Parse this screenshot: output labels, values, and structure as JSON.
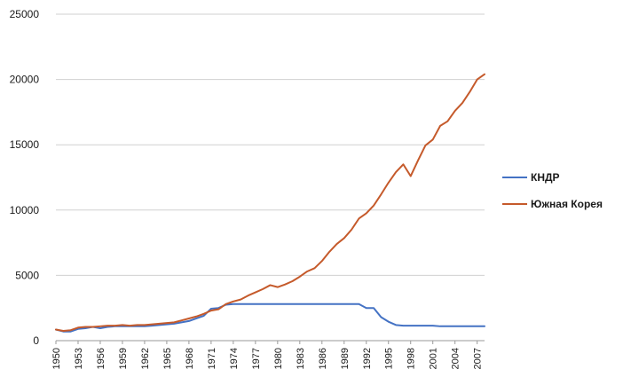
{
  "chart_data": {
    "type": "line",
    "title": "",
    "xlabel": "",
    "ylabel": "",
    "ylim": [
      0,
      25000
    ],
    "xlim": [
      1950,
      2008
    ],
    "y_ticks": [
      0,
      5000,
      10000,
      15000,
      20000,
      25000
    ],
    "x_ticks": [
      1950,
      1953,
      1956,
      1959,
      1962,
      1965,
      1968,
      1971,
      1974,
      1977,
      1980,
      1983,
      1986,
      1989,
      1992,
      1995,
      1998,
      2001,
      2004,
      2007
    ],
    "grid": "horizontal",
    "legend_position": "right",
    "x": [
      1950,
      1951,
      1952,
      1953,
      1954,
      1955,
      1956,
      1957,
      1958,
      1959,
      1960,
      1961,
      1962,
      1963,
      1964,
      1965,
      1966,
      1967,
      1968,
      1969,
      1970,
      1971,
      1972,
      1973,
      1974,
      1975,
      1976,
      1977,
      1978,
      1979,
      1980,
      1981,
      1982,
      1983,
      1984,
      1985,
      1986,
      1987,
      1988,
      1989,
      1990,
      1991,
      1992,
      1993,
      1994,
      1995,
      1996,
      1997,
      1998,
      1999,
      2000,
      2001,
      2002,
      2003,
      2004,
      2005,
      2006,
      2007,
      2008
    ],
    "series": [
      {
        "name": "КНДР",
        "color": "#4472c4",
        "values": [
          850,
          700,
          700,
          900,
          950,
          1050,
          950,
          1050,
          1100,
          1100,
          1100,
          1100,
          1100,
          1150,
          1200,
          1250,
          1300,
          1400,
          1500,
          1700,
          1900,
          2450,
          2500,
          2750,
          2800,
          2800,
          2800,
          2800,
          2800,
          2800,
          2800,
          2800,
          2800,
          2800,
          2800,
          2800,
          2800,
          2800,
          2800,
          2800,
          2800,
          2800,
          2500,
          2500,
          1800,
          1450,
          1200,
          1150,
          1150,
          1150,
          1150,
          1150,
          1100,
          1100,
          1100,
          1100,
          1100,
          1100,
          1100
        ]
      },
      {
        "name": "Южная Корея",
        "color": "#c55a2b",
        "values": [
          850,
          750,
          800,
          1000,
          1050,
          1050,
          1100,
          1150,
          1150,
          1200,
          1150,
          1200,
          1200,
          1250,
          1300,
          1350,
          1400,
          1550,
          1700,
          1850,
          2050,
          2300,
          2400,
          2800,
          3000,
          3150,
          3450,
          3700,
          3950,
          4250,
          4100,
          4300,
          4550,
          4900,
          5300,
          5550,
          6100,
          6800,
          7400,
          7850,
          8500,
          9350,
          9750,
          10350,
          11200,
          12100,
          12900,
          13500,
          12600,
          13800,
          14950,
          15400,
          16450,
          16800,
          17600,
          18200,
          19050,
          20000,
          20400
        ]
      }
    ]
  }
}
